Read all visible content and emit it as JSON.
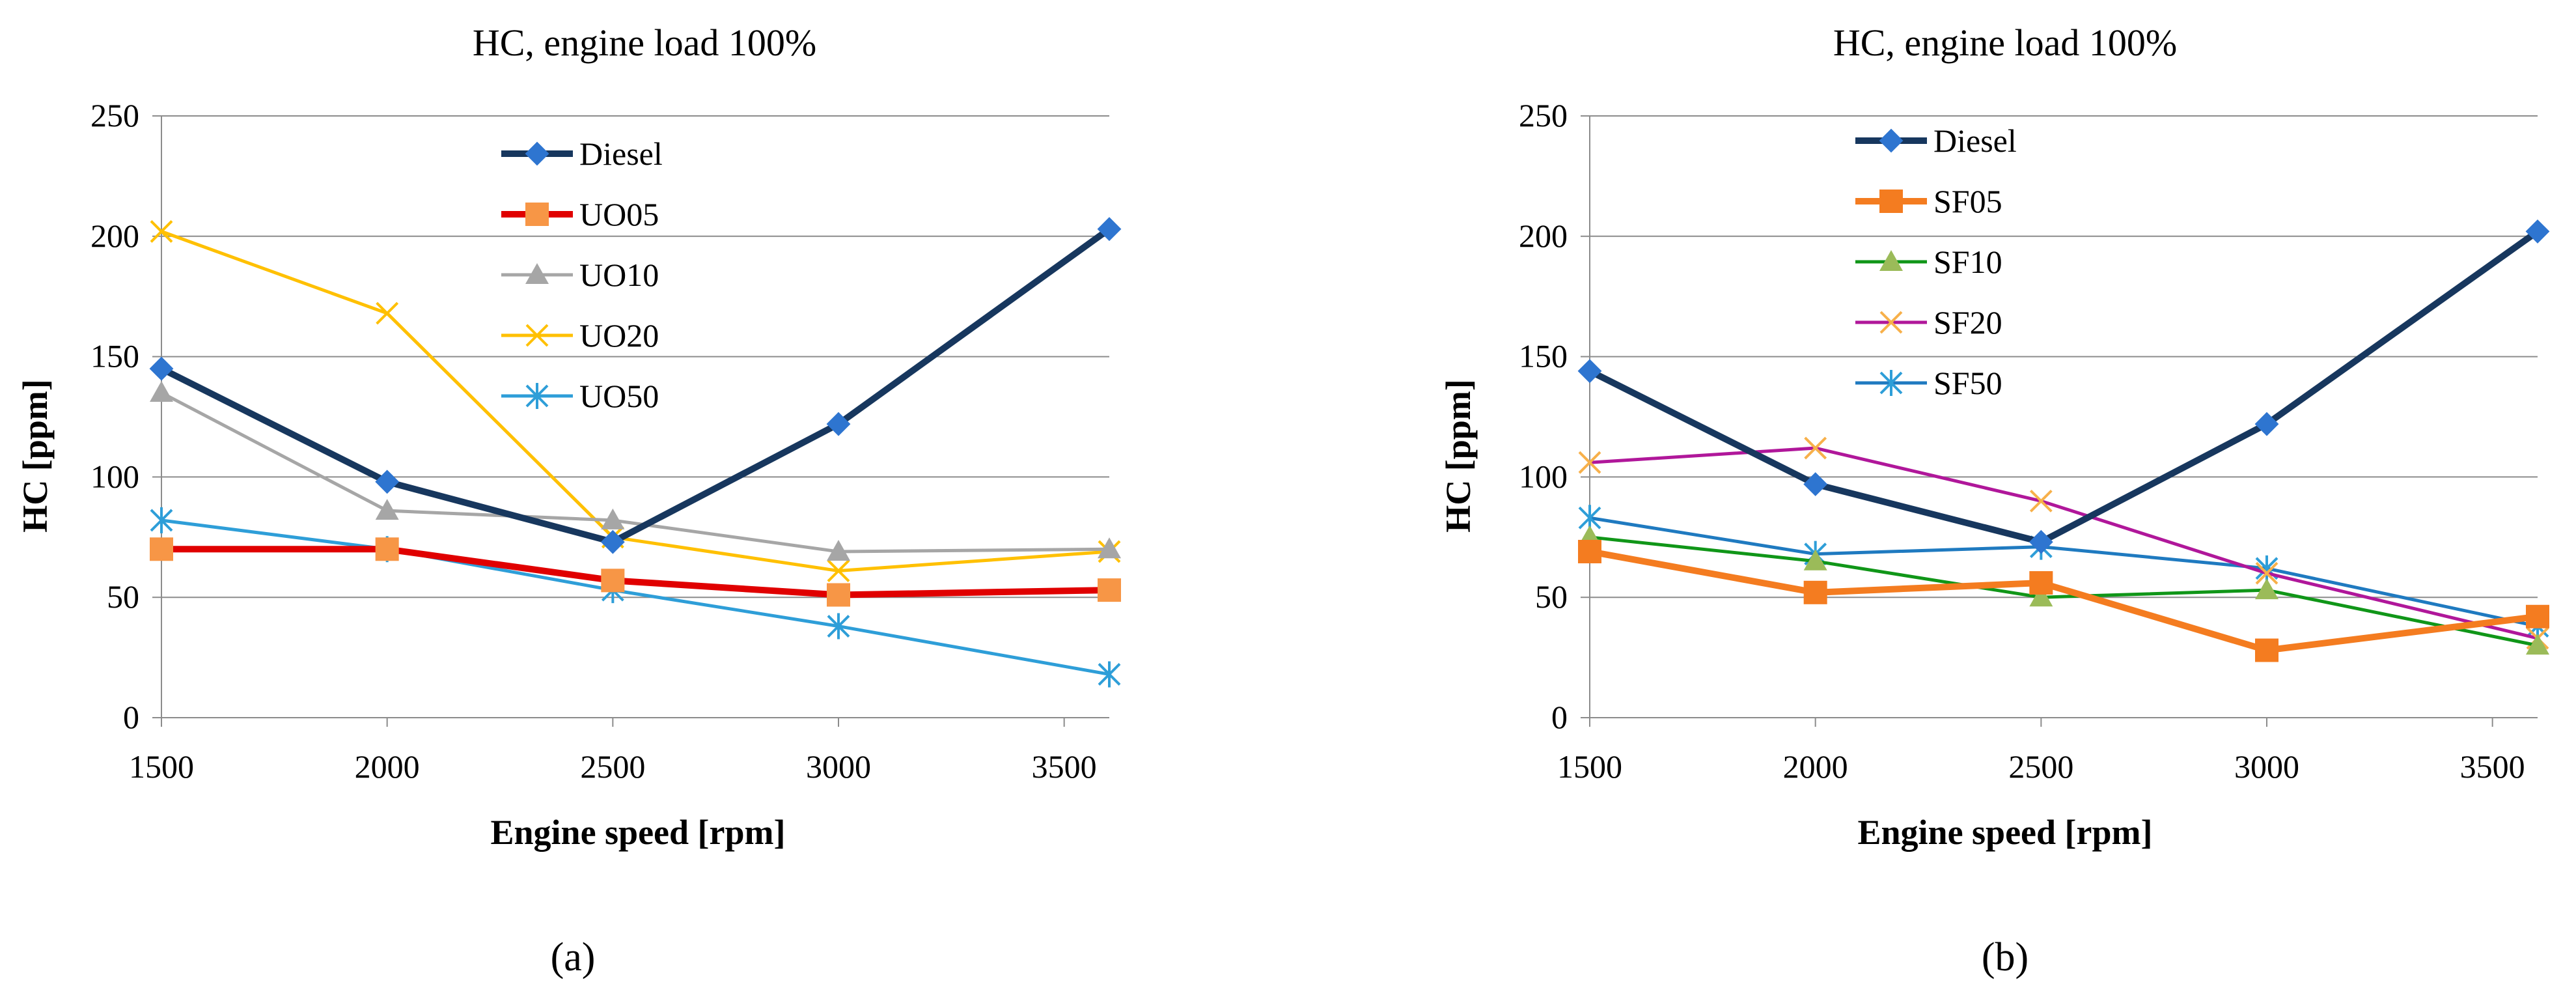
{
  "chart_data": [
    {
      "type": "line",
      "panel": "a",
      "title": "HC, engine load 100%",
      "xlabel": "Engine speed [rpm]",
      "ylabel": "HC [ppm]",
      "x": [
        1500,
        2000,
        2500,
        3000,
        3600
      ],
      "xticks": [
        1500,
        2000,
        2500,
        3000,
        3500
      ],
      "xlim": [
        1500,
        3600
      ],
      "ylim": [
        0,
        250
      ],
      "yticks": [
        0,
        50,
        100,
        150,
        200,
        250
      ],
      "grid": "horizontal",
      "legend_position": "top-center",
      "series": [
        {
          "name": "Diesel",
          "values": [
            145,
            98,
            73,
            122,
            203
          ],
          "color": "#17375e",
          "marker": "diamond",
          "bold": true
        },
        {
          "name": "UO05",
          "values": [
            70,
            70,
            57,
            51,
            53
          ],
          "color": "#e00000",
          "marker": "square",
          "marker_color": "#f79646",
          "bold": true
        },
        {
          "name": "UO10",
          "values": [
            135,
            86,
            82,
            69,
            70
          ],
          "color": "#a6a6a6",
          "marker": "triangle",
          "bold": false
        },
        {
          "name": "UO20",
          "values": [
            202,
            168,
            75,
            61,
            69
          ],
          "color": "#ffc000",
          "marker": "x",
          "bold": false
        },
        {
          "name": "UO50",
          "values": [
            82,
            70,
            53,
            38,
            18
          ],
          "color": "#2e9ed8",
          "marker": "star",
          "bold": false
        }
      ]
    },
    {
      "type": "line",
      "panel": "b",
      "title": "HC, engine load 100%",
      "xlabel": "Engine speed [rpm]",
      "ylabel": "HC [ppm]",
      "x": [
        1500,
        2000,
        2500,
        3000,
        3600
      ],
      "xticks": [
        1500,
        2000,
        2500,
        3000,
        3500
      ],
      "xlim": [
        1500,
        3600
      ],
      "ylim": [
        0,
        250
      ],
      "yticks": [
        0,
        50,
        100,
        150,
        200,
        250
      ],
      "grid": "horizontal",
      "legend_position": "top-left",
      "series": [
        {
          "name": "Diesel",
          "values": [
            144,
            97,
            73,
            122,
            202
          ],
          "color": "#17375e",
          "marker": "diamond",
          "bold": true
        },
        {
          "name": "SF05",
          "values": [
            69,
            52,
            56,
            28,
            42
          ],
          "color": "#f47c20",
          "marker": "square",
          "marker_color": "#f47c20",
          "bold": true
        },
        {
          "name": "SF10",
          "values": [
            75,
            65,
            50,
            53,
            30
          ],
          "color": "#109618",
          "marker": "triangle",
          "marker_color": "#9bbb59",
          "bold": false
        },
        {
          "name": "SF20",
          "values": [
            106,
            112,
            90,
            60,
            33
          ],
          "color": "#b0179a",
          "marker": "x",
          "marker_color": "#f7b04a",
          "bold": false
        },
        {
          "name": "SF50",
          "values": [
            83,
            68,
            71,
            62,
            38
          ],
          "color": "#1f7ac0",
          "marker": "star",
          "marker_color": "#2e9ed8",
          "bold": false
        }
      ]
    }
  ],
  "panel_labels": [
    "(a)",
    "(b)"
  ]
}
